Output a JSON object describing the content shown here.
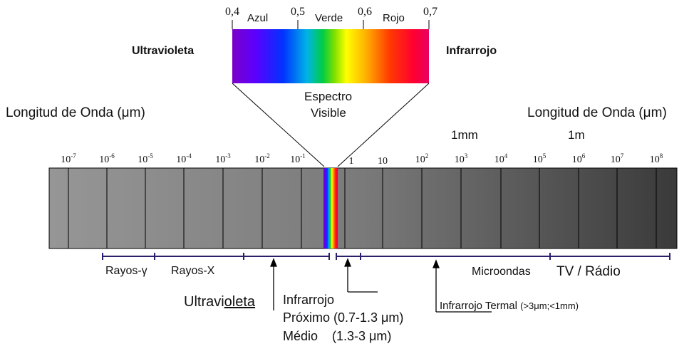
{
  "visible_spectrum": {
    "ticks": [
      "0,4",
      "0,5",
      "0,6",
      "0,7"
    ],
    "color_labels": [
      "Azul",
      "Verde",
      "Rojo"
    ],
    "left_label": "Ultravioleta",
    "right_label": "Infrarrojo",
    "caption_line1": "Espectro",
    "caption_line2": "Visible"
  },
  "axis": {
    "left_title": "Longitud de Onda (μm)",
    "right_title": "Longitud de Onda (μm)",
    "unit_1mm": "1mm",
    "unit_1m": "1m",
    "ticks_left": [
      {
        "base": "10",
        "exp": "-7"
      },
      {
        "base": "10",
        "exp": "-6"
      },
      {
        "base": "10",
        "exp": "-5"
      },
      {
        "base": "10",
        "exp": "-4"
      },
      {
        "base": "10",
        "exp": "-3"
      },
      {
        "base": "10",
        "exp": "-2"
      },
      {
        "base": "10",
        "exp": "-1"
      }
    ],
    "ticks_right": [
      {
        "base": "1",
        "exp": ""
      },
      {
        "base": "10",
        "exp": ""
      },
      {
        "base": "10",
        "exp": "2"
      },
      {
        "base": "10",
        "exp": "3"
      },
      {
        "base": "10",
        "exp": "4"
      },
      {
        "base": "10",
        "exp": "5"
      },
      {
        "base": "10",
        "exp": "6"
      },
      {
        "base": "10",
        "exp": "7"
      },
      {
        "base": "10",
        "exp": "8"
      }
    ]
  },
  "regions": {
    "gamma": "Rayos-γ",
    "xray": "Rayos-X",
    "uv_prefix": "Ultravi",
    "uv_suffix": "oleta",
    "ir_title": "Infrarrojo",
    "ir_near": "Próximo (0.7-1.3 μm)",
    "ir_mid": "Médio    (1.3-3 μm)",
    "ir_thermal_prefix": "Infrarrojo",
    "ir_thermal_suffix": " Termal ",
    "ir_thermal_range": "(>3μm;<1mm)",
    "microwave": "Microondas",
    "tv_radio": "TV / Rádio"
  },
  "colors": {
    "bar_dark": "#3a3a3a",
    "bar_light": "#8e8e8e",
    "bracket": "#2b1e6b"
  }
}
